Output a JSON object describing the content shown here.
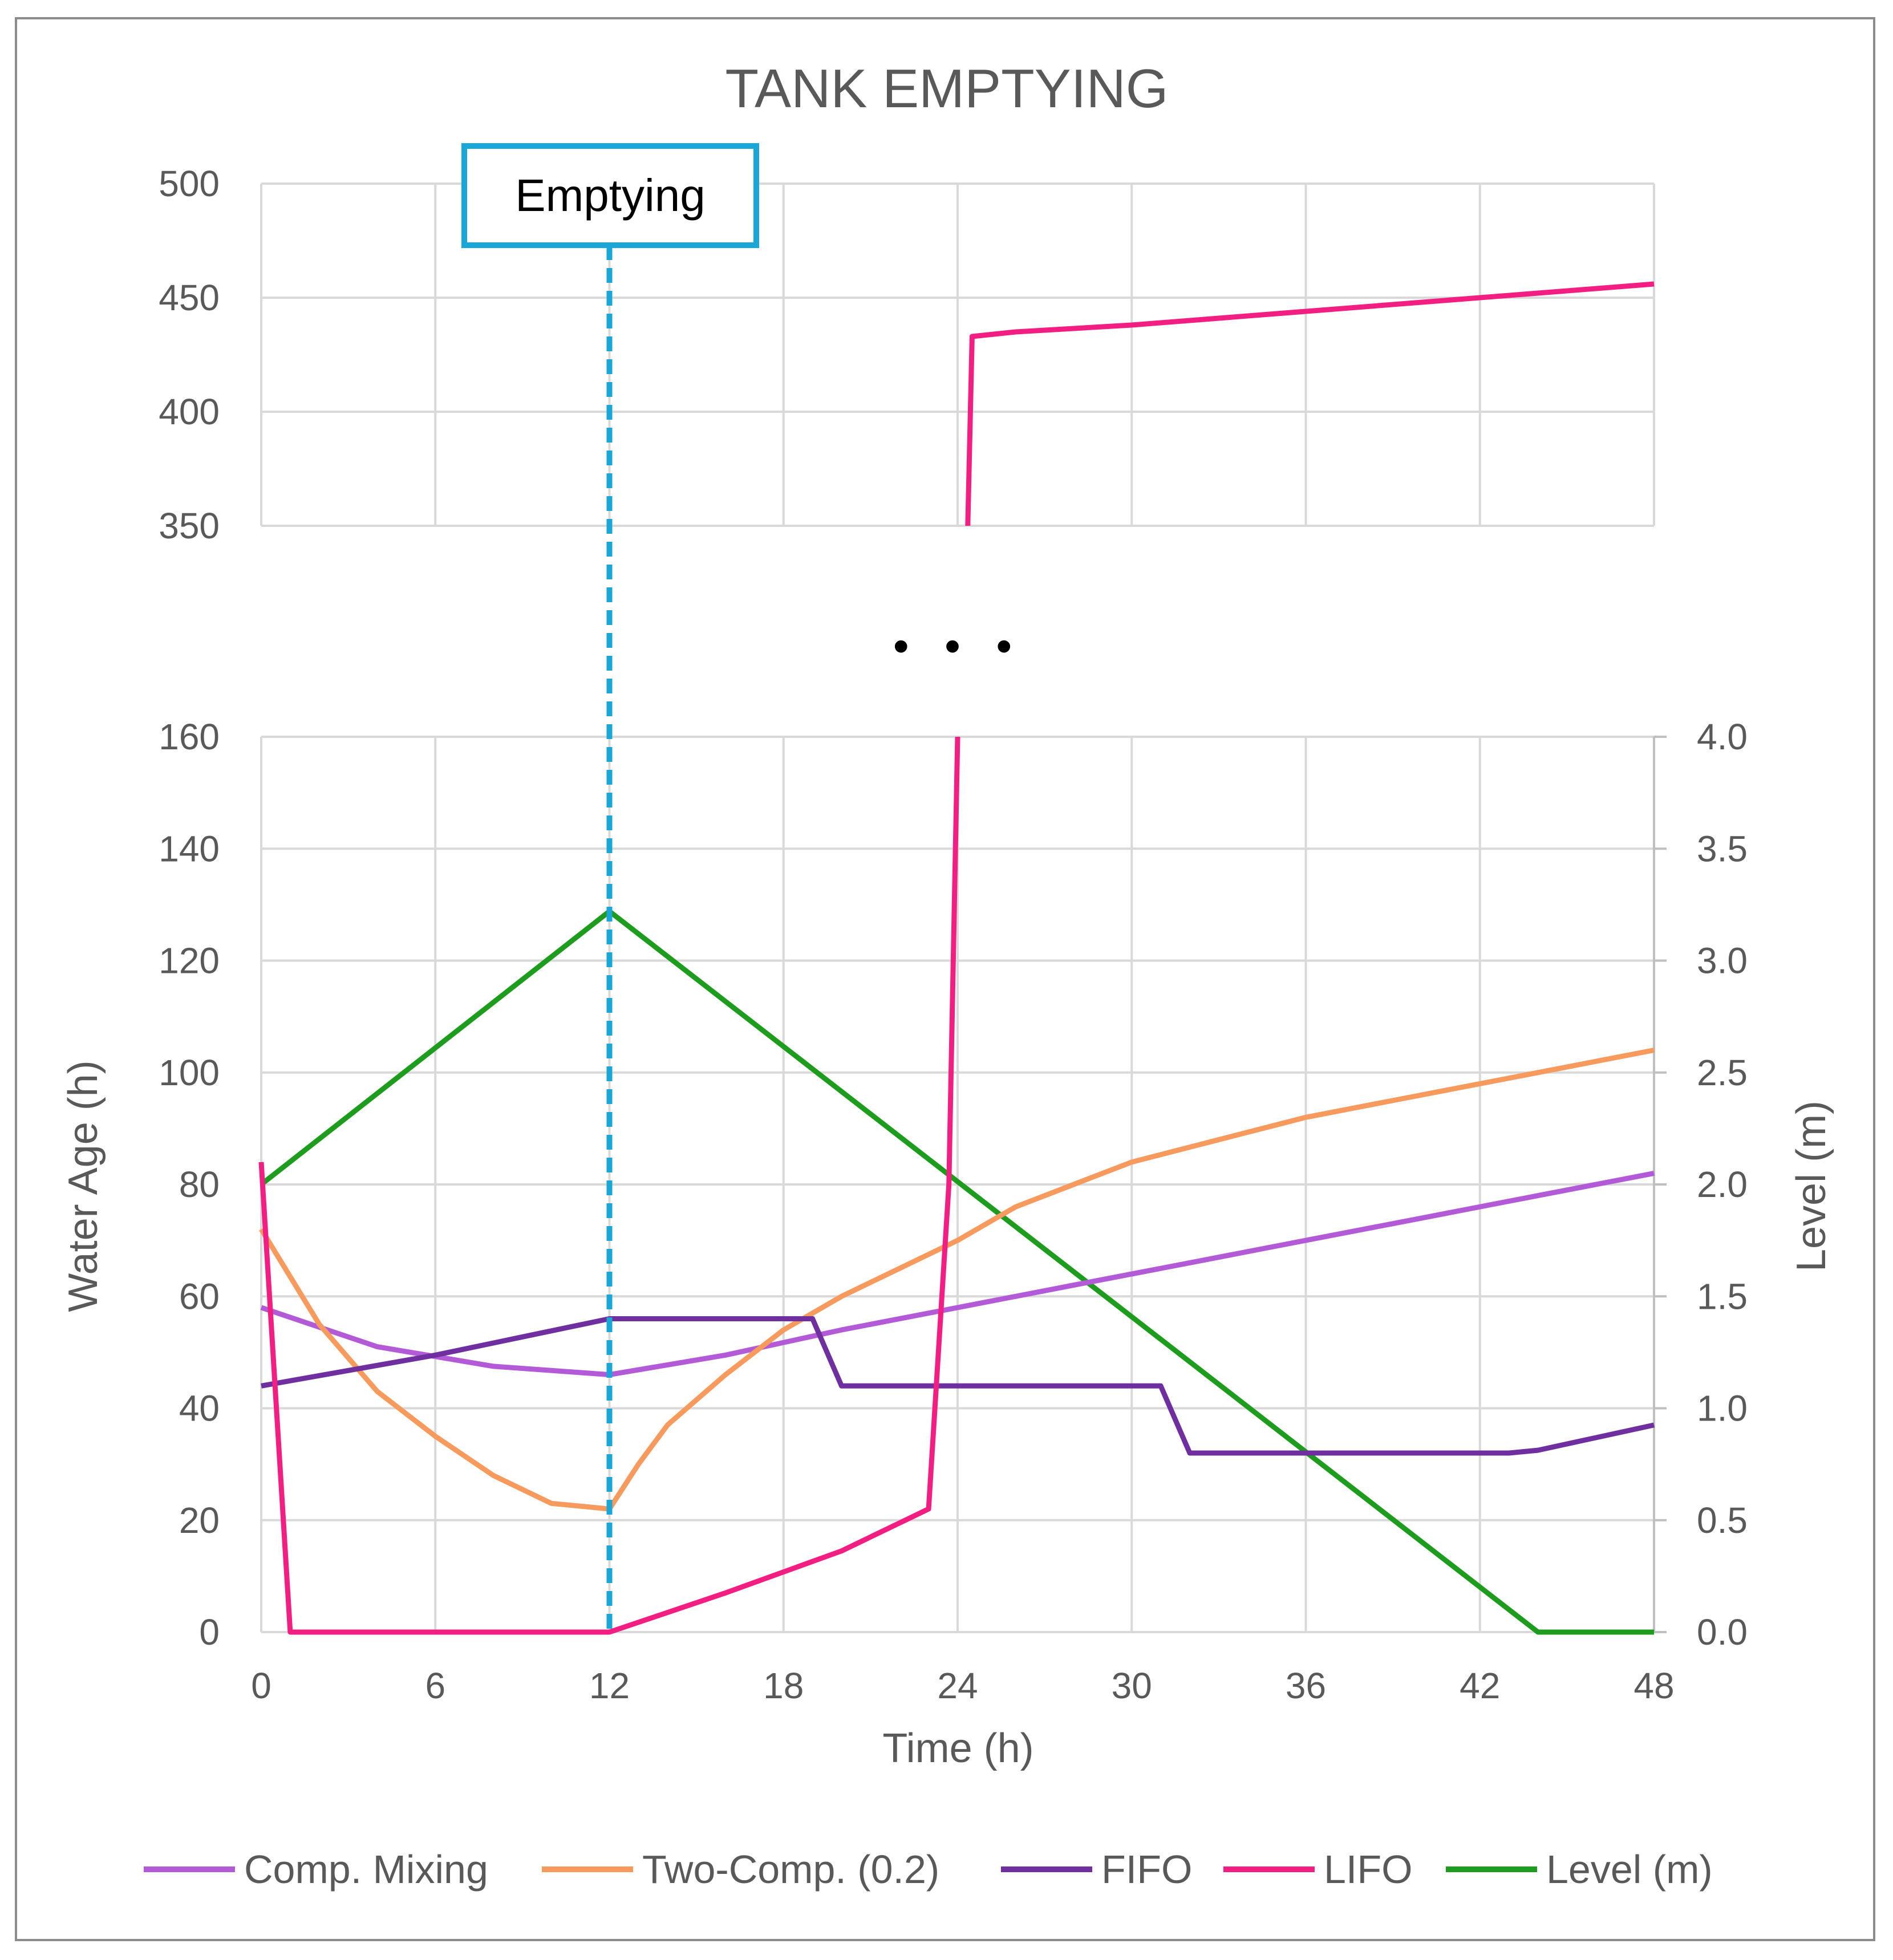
{
  "chart_data": {
    "type": "line",
    "title": "TANK EMPTYING",
    "xlabel": "Time (h)",
    "ylabel": "Water Age (h)",
    "y2label": "Level (m)",
    "x_ticks": [
      0,
      6,
      12,
      18,
      24,
      30,
      36,
      42,
      48
    ],
    "y_ticks_lower": [
      0,
      20,
      40,
      60,
      80,
      100,
      120,
      140,
      160
    ],
    "y_ticks_upper": [
      350,
      400,
      450,
      500
    ],
    "y2_ticks": [
      "0.0",
      "0.5",
      "1.0",
      "1.5",
      "2.0",
      "2.5",
      "3.0",
      "3.5",
      "4.0"
    ],
    "xlim": [
      0,
      48
    ],
    "ylim_lower": [
      0,
      160
    ],
    "ylim_upper": [
      350,
      500
    ],
    "y2lim": [
      0,
      4
    ],
    "axis_break": "• • •",
    "annotation": {
      "label": "Emptying",
      "x": 12
    },
    "grid": true,
    "legend_position": "bottom",
    "series": [
      {
        "name": "Comp. Mixing",
        "color": "#b35bd6",
        "axis": "left",
        "points": [
          [
            0,
            58
          ],
          [
            4,
            51
          ],
          [
            8,
            47.5
          ],
          [
            12,
            46
          ],
          [
            16,
            49.5
          ],
          [
            20,
            54
          ],
          [
            24,
            58
          ],
          [
            28,
            62
          ],
          [
            32,
            66
          ],
          [
            36,
            70
          ],
          [
            40,
            74
          ],
          [
            44,
            78
          ],
          [
            48,
            82
          ]
        ]
      },
      {
        "name": "Two-Comp. (0.2)",
        "color": "#f79a5e",
        "axis": "left",
        "points": [
          [
            0,
            72
          ],
          [
            2,
            55
          ],
          [
            4,
            43
          ],
          [
            6,
            35
          ],
          [
            8,
            28
          ],
          [
            10,
            23
          ],
          [
            12,
            22
          ],
          [
            13,
            30
          ],
          [
            14,
            37
          ],
          [
            16,
            46
          ],
          [
            18,
            54
          ],
          [
            20,
            60
          ],
          [
            22,
            65
          ],
          [
            24,
            70
          ],
          [
            26,
            76
          ],
          [
            28,
            80
          ],
          [
            30,
            84
          ],
          [
            33,
            88
          ],
          [
            36,
            92
          ],
          [
            40,
            96
          ],
          [
            44,
            100
          ],
          [
            48,
            104
          ]
        ]
      },
      {
        "name": "FIFO",
        "color": "#6f2f9f",
        "axis": "left",
        "points": [
          [
            0,
            44
          ],
          [
            6,
            49.5
          ],
          [
            12,
            56
          ],
          [
            19,
            56
          ],
          [
            20,
            44
          ],
          [
            31,
            44
          ],
          [
            32,
            32
          ],
          [
            43,
            32
          ],
          [
            44,
            32.5
          ],
          [
            48,
            37
          ]
        ]
      },
      {
        "name": "LIFO",
        "color": "#f21e82",
        "axis": "left",
        "points": [
          [
            0,
            84
          ],
          [
            1,
            0
          ],
          [
            12,
            0
          ],
          [
            16,
            7
          ],
          [
            20,
            14.5
          ],
          [
            23,
            22
          ],
          [
            23.7,
            80
          ],
          [
            24,
            160
          ],
          [
            24.35,
            350
          ],
          [
            24.5,
            433
          ],
          [
            26,
            435
          ],
          [
            30,
            438
          ],
          [
            36,
            444
          ],
          [
            42,
            450
          ],
          [
            48,
            456
          ]
        ]
      },
      {
        "name": "Level (m)",
        "color": "#1d9c1d",
        "axis": "right",
        "points": [
          [
            0,
            2.0
          ],
          [
            12,
            3.22
          ],
          [
            44,
            0.0
          ],
          [
            48,
            0.0
          ]
        ]
      }
    ]
  }
}
